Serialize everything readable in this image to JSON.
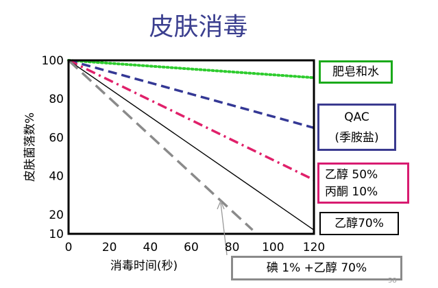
{
  "title": "皮肤消毒",
  "page_number": "58",
  "chart_data": {
    "type": "line",
    "title": "皮肤消毒",
    "xlabel": "消毒时间(秒)",
    "ylabel": "皮肤菌落数%",
    "xlim": [
      0,
      120
    ],
    "ylim": [
      10,
      100
    ],
    "xticks": [
      "0",
      "20",
      "40",
      "60",
      "80",
      "100",
      "120"
    ],
    "yticks": [
      "10",
      "20",
      "40",
      "60",
      "80",
      "100"
    ],
    "grid": false,
    "legend_placement": "right, boxed labels beside each line",
    "series": [
      {
        "name": "肥皂和水",
        "label_lines": [
          "肥皂和水"
        ],
        "color": "#2ecc2e",
        "box_color": "#1aaa1a",
        "dash": "dot",
        "x": [
          0,
          120
        ],
        "y": [
          100,
          91
        ]
      },
      {
        "name": "QAC (季胺盐)",
        "label_lines": [
          "QAC",
          "(季胺盐)"
        ],
        "color": "#343895",
        "box_color": "#3a3a8f",
        "dash": "dash",
        "x": [
          0,
          120
        ],
        "y": [
          100,
          65
        ]
      },
      {
        "name": "乙醇 50% 丙酮 10%",
        "label_lines": [
          "乙醇 50%",
          "丙酮 10%"
        ],
        "color": "#e0206a",
        "box_color": "#d81b70",
        "dash": "dashdot",
        "x": [
          0,
          120
        ],
        "y": [
          100,
          38
        ]
      },
      {
        "name": "乙醇70%",
        "label_lines": [
          "乙醇70%"
        ],
        "color": "#000000",
        "box_color": "#000000",
        "dash": "solid",
        "x": [
          0,
          120
        ],
        "y": [
          100,
          12
        ]
      },
      {
        "name": "碘 1% +乙醇 70%",
        "label_lines": [
          "碘 1% +乙醇 70%"
        ],
        "color": "#8a8a8a",
        "box_color": "#8a8a8a",
        "dash": "longdash",
        "x": [
          0,
          90
        ],
        "y": [
          100,
          12
        ]
      }
    ]
  }
}
